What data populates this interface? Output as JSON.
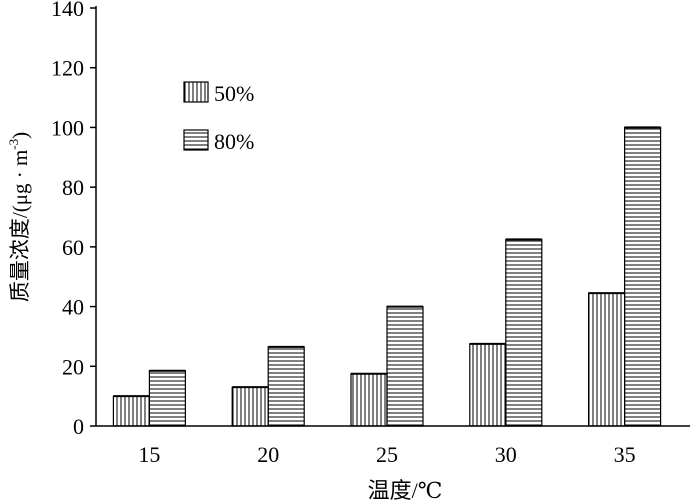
{
  "chart_data": {
    "type": "bar",
    "categories": [
      "15",
      "20",
      "25",
      "30",
      "35"
    ],
    "series": [
      {
        "name": "50%",
        "values": [
          10,
          13,
          17.5,
          27.5,
          44.5
        ],
        "pattern": "vertical-stripes"
      },
      {
        "name": "80%",
        "values": [
          18.5,
          26.5,
          40,
          62.5,
          100
        ],
        "pattern": "horizontal-stripes"
      }
    ],
    "xlabel": "温度/℃",
    "ylabel": "质量浓度/(μg · m",
    "ylabel_superscript": "-3",
    "ylabel_suffix": ")",
    "ylim": [
      0,
      140
    ],
    "yticks": [
      "0",
      "20",
      "40",
      "60",
      "80",
      "100",
      "120",
      "140"
    ],
    "legend_position": "top-left",
    "grid": false
  }
}
